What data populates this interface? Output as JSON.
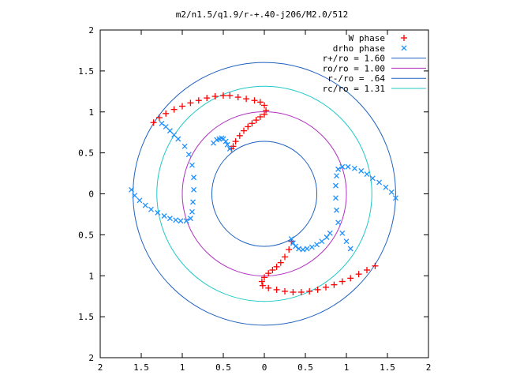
{
  "chart_data": {
    "type": "scatter",
    "title": "m2/n1.5/q1.9/r-+.40-j206/M2.0/512",
    "xlabel": "",
    "ylabel": "",
    "xlim": [
      -2,
      2
    ],
    "ylim": [
      -2,
      2
    ],
    "grid": false,
    "legend_position": "top-right",
    "x_ticks": [
      {
        "value": -2,
        "label": "2"
      },
      {
        "value": -1.5,
        "label": "1.5"
      },
      {
        "value": -1,
        "label": "1"
      },
      {
        "value": -0.5,
        "label": "0.5"
      },
      {
        "value": 0,
        "label": "0"
      },
      {
        "value": 0.5,
        "label": "0.5"
      },
      {
        "value": 1,
        "label": "1"
      },
      {
        "value": 1.5,
        "label": "1.5"
      },
      {
        "value": 2,
        "label": "2"
      }
    ],
    "y_ticks": [
      {
        "value": 2,
        "label": "2"
      },
      {
        "value": 1.5,
        "label": "1.5"
      },
      {
        "value": 1,
        "label": "1"
      },
      {
        "value": 0.5,
        "label": "0.5"
      },
      {
        "value": 0,
        "label": "0"
      },
      {
        "value": -0.5,
        "label": "0.5"
      },
      {
        "value": -1,
        "label": "1"
      },
      {
        "value": -1.5,
        "label": "1.5"
      },
      {
        "value": -2,
        "label": "2"
      }
    ],
    "series": [
      {
        "name": "W phase",
        "kind": "points",
        "marker": "plus",
        "color": "#ff0000",
        "x": [
          -1.35,
          -1.28,
          -1.2,
          -1.1,
          -1.0,
          -0.9,
          -0.8,
          -0.7,
          -0.6,
          -0.5,
          -0.42,
          -0.32,
          -0.22,
          -0.12,
          -0.05,
          0.0,
          0.02,
          0.0,
          -0.05,
          -0.1,
          -0.15,
          -0.2,
          -0.25,
          -0.3,
          -0.35,
          -0.38,
          -0.4,
          1.35,
          1.25,
          1.15,
          1.05,
          0.95,
          0.85,
          0.75,
          0.65,
          0.55,
          0.45,
          0.35,
          0.25,
          0.15,
          0.05,
          -0.02,
          -0.03,
          0.0,
          0.05,
          0.1,
          0.15,
          0.2,
          0.25,
          0.3,
          0.33
        ],
        "y": [
          0.87,
          0.93,
          0.98,
          1.03,
          1.07,
          1.11,
          1.14,
          1.17,
          1.19,
          1.2,
          1.2,
          1.18,
          1.16,
          1.14,
          1.12,
          1.08,
          1.02,
          0.97,
          0.94,
          0.9,
          0.86,
          0.82,
          0.77,
          0.71,
          0.64,
          0.58,
          0.55,
          -0.88,
          -0.93,
          -0.98,
          -1.03,
          -1.07,
          -1.11,
          -1.14,
          -1.17,
          -1.19,
          -1.2,
          -1.2,
          -1.19,
          -1.17,
          -1.15,
          -1.12,
          -1.07,
          -1.02,
          -0.97,
          -0.93,
          -0.89,
          -0.84,
          -0.77,
          -0.68,
          -0.58
        ]
      },
      {
        "name": "drho phase",
        "kind": "points",
        "marker": "cross",
        "color": "#1e90ff",
        "x": [
          -1.62,
          -1.58,
          -1.52,
          -1.45,
          -1.38,
          -1.3,
          -1.22,
          -1.15,
          -1.08,
          -1.02,
          -0.95,
          -0.9,
          -0.88,
          -0.87,
          -0.86,
          -0.86,
          -0.88,
          -0.92,
          -0.97,
          -1.05,
          -1.1,
          -1.15,
          -1.2,
          -1.25,
          -0.42,
          -0.45,
          -0.47,
          -0.5,
          -0.52,
          -0.55,
          -0.58,
          -0.62,
          1.6,
          1.55,
          1.48,
          1.4,
          1.32,
          1.25,
          1.18,
          1.1,
          1.02,
          0.95,
          0.9,
          0.88,
          0.87,
          0.87,
          0.88,
          0.9,
          0.95,
          1.0,
          1.05,
          0.33,
          0.35,
          0.38,
          0.42,
          0.47,
          0.52,
          0.58,
          0.64,
          0.7,
          0.76,
          0.8
        ],
        "y": [
          0.05,
          -0.02,
          -0.08,
          -0.14,
          -0.19,
          -0.23,
          -0.27,
          -0.3,
          -0.32,
          -0.33,
          -0.33,
          -0.3,
          -0.22,
          -0.1,
          0.05,
          0.2,
          0.35,
          0.48,
          0.58,
          0.67,
          0.72,
          0.77,
          0.82,
          0.86,
          0.55,
          0.6,
          0.64,
          0.67,
          0.68,
          0.67,
          0.66,
          0.62,
          -0.05,
          0.02,
          0.08,
          0.14,
          0.19,
          0.24,
          0.28,
          0.31,
          0.33,
          0.33,
          0.3,
          0.22,
          0.1,
          -0.05,
          -0.2,
          -0.35,
          -0.48,
          -0.58,
          -0.67,
          -0.55,
          -0.6,
          -0.64,
          -0.67,
          -0.68,
          -0.67,
          -0.65,
          -0.62,
          -0.58,
          -0.53,
          -0.48
        ]
      },
      {
        "name": "r+/ro = 1.60",
        "kind": "circle",
        "radius": 1.6,
        "color": "#1e60c0"
      },
      {
        "name": "ro/ro = 1.00",
        "kind": "circle",
        "radius": 1.0,
        "color": "#b030c0"
      },
      {
        "name": "r-/ro = .64",
        "kind": "circle",
        "radius": 0.64,
        "color": "#1e60c0"
      },
      {
        "name": "rc/ro = 1.31",
        "kind": "circle",
        "radius": 1.31,
        "color": "#20c8c8"
      }
    ]
  }
}
